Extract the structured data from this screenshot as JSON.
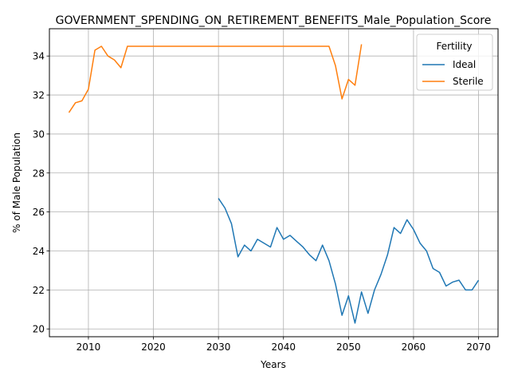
{
  "chart_data": {
    "type": "line",
    "title": "GOVERNMENT_SPENDING_ON_RETIREMENT_BENEFITS_Male_Population_Score",
    "xlabel": "Years",
    "ylabel": "% of Male Population",
    "xlim": [
      2004,
      2073
    ],
    "ylim": [
      19.6,
      35.4
    ],
    "xticks": [
      2010,
      2020,
      2030,
      2040,
      2050,
      2060,
      2070
    ],
    "yticks": [
      20,
      22,
      24,
      26,
      28,
      30,
      32,
      34
    ],
    "grid": true,
    "legend": {
      "title": "Fertility",
      "placement": "top-right"
    },
    "series": [
      {
        "name": "Ideal",
        "color": "#1f77b4",
        "x": [
          2030,
          2031,
          2032,
          2033,
          2034,
          2035,
          2036,
          2037,
          2038,
          2039,
          2040,
          2041,
          2042,
          2043,
          2044,
          2045,
          2046,
          2047,
          2048,
          2049,
          2050,
          2051,
          2052,
          2053,
          2054,
          2055,
          2056,
          2057,
          2058,
          2059,
          2060,
          2061,
          2062,
          2063,
          2064,
          2065,
          2066,
          2067,
          2068,
          2069,
          2070
        ],
        "y": [
          26.7,
          26.2,
          25.4,
          23.7,
          24.3,
          24.0,
          24.6,
          24.4,
          24.2,
          25.2,
          24.6,
          24.8,
          24.5,
          24.2,
          23.8,
          23.5,
          24.3,
          23.5,
          22.3,
          20.7,
          21.7,
          20.3,
          21.9,
          20.8,
          22.0,
          22.8,
          23.8,
          25.2,
          24.9,
          25.6,
          25.1,
          24.4,
          24.0,
          23.1,
          22.9,
          22.2,
          22.4,
          22.5,
          22.0,
          22.0,
          22.5
        ]
      },
      {
        "name": "Sterile",
        "color": "#ff7f0e",
        "x": [
          2007,
          2008,
          2009,
          2010,
          2011,
          2012,
          2013,
          2014,
          2015,
          2016,
          2017,
          2018,
          2019,
          2020,
          2021,
          2022,
          2023,
          2024,
          2025,
          2026,
          2027,
          2028,
          2029,
          2030,
          2031,
          2032,
          2033,
          2034,
          2035,
          2036,
          2037,
          2038,
          2039,
          2040,
          2041,
          2042,
          2043,
          2044,
          2045,
          2046,
          2047,
          2048,
          2049,
          2050,
          2051,
          2052
        ],
        "y": [
          31.1,
          31.6,
          31.7,
          32.3,
          34.3,
          34.5,
          34.0,
          33.8,
          33.4,
          34.5,
          34.5,
          34.5,
          34.5,
          34.5,
          34.5,
          34.5,
          34.5,
          34.5,
          34.5,
          34.5,
          34.5,
          34.5,
          34.5,
          34.5,
          34.5,
          34.5,
          34.5,
          34.5,
          34.5,
          34.5,
          34.5,
          34.5,
          34.5,
          34.5,
          34.5,
          34.5,
          34.5,
          34.5,
          34.5,
          34.5,
          34.5,
          33.5,
          31.8,
          32.8,
          32.5,
          34.6
        ]
      }
    ]
  }
}
